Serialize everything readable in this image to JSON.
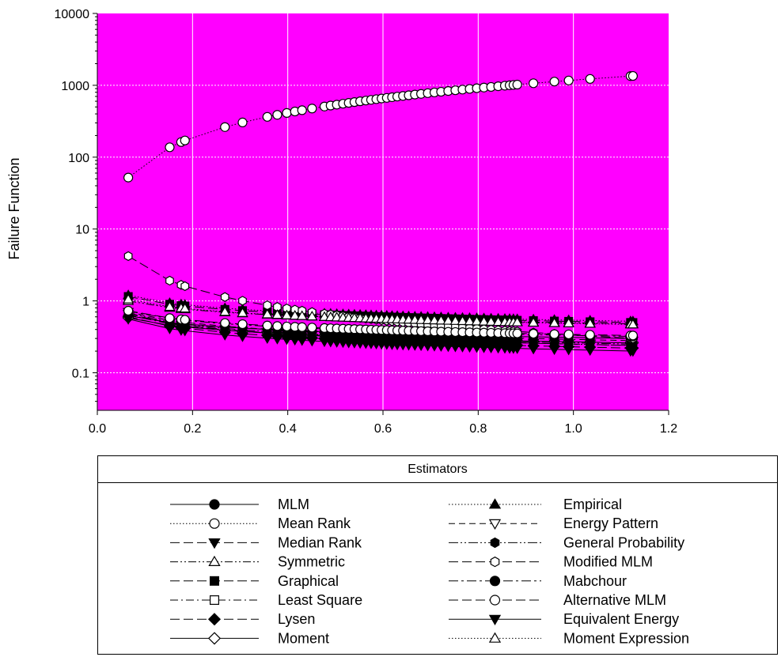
{
  "chart_data": {
    "type": "scatter",
    "title": "",
    "xlabel": "",
    "ylabel": "Failure Function",
    "xlim": [
      0.0,
      1.2
    ],
    "ylim": [
      0.03,
      10000
    ],
    "yscale": "log",
    "x_ticks": [
      "0.0",
      "0.2",
      "0.4",
      "0.6",
      "0.8",
      "1.0",
      "1.2"
    ],
    "y_ticks": [
      "0.1",
      "1",
      "10",
      "100",
      "1000",
      "10000"
    ],
    "grid": true,
    "plot_background": "#ff00ff",
    "legend_title": "Estimators",
    "legend_position": "bottom",
    "x": [
      0.065,
      0.152,
      0.176,
      0.184,
      0.268,
      0.305,
      0.357,
      0.378,
      0.398,
      0.415,
      0.43,
      0.451,
      0.477,
      0.49,
      0.503,
      0.516,
      0.528,
      0.54,
      0.552,
      0.564,
      0.575,
      0.586,
      0.597,
      0.608,
      0.619,
      0.63,
      0.642,
      0.654,
      0.667,
      0.68,
      0.694,
      0.708,
      0.722,
      0.737,
      0.752,
      0.767,
      0.782,
      0.797,
      0.812,
      0.827,
      0.842,
      0.856,
      0.866,
      0.874,
      0.882,
      0.916,
      0.96,
      0.99,
      1.035,
      1.12,
      1.125
    ],
    "series": [
      {
        "name": "MLM",
        "marker": "circle-filled",
        "dash": "solid",
        "start": 0.62,
        "end": 0.3
      },
      {
        "name": "Mean Rank",
        "marker": "circle-open",
        "dash": "dotted",
        "start": 52,
        "end": 1350
      },
      {
        "name": "Median Rank",
        "marker": "triangle-down-filled",
        "dash": "long-dash",
        "start": 0.66,
        "end": 0.24
      },
      {
        "name": "Symmetric",
        "marker": "triangle-up-open",
        "dash": "dash-dot-dot",
        "start": 1.0,
        "end": 0.48
      },
      {
        "name": "Graphical",
        "marker": "square-filled",
        "dash": "long-dash",
        "start": 1.15,
        "end": 0.5
      },
      {
        "name": "Least Square",
        "marker": "square-open",
        "dash": "dash-dot",
        "start": 0.64,
        "end": 0.24
      },
      {
        "name": "Lysen",
        "marker": "diamond-filled",
        "dash": "long-dash",
        "start": 0.6,
        "end": 0.22
      },
      {
        "name": "Moment",
        "marker": "diamond-open",
        "dash": "solid",
        "start": 0.58,
        "end": 0.26
      },
      {
        "name": "Empirical",
        "marker": "triangle-up-filled",
        "dash": "dotted",
        "start": 1.2,
        "end": 0.52
      },
      {
        "name": "Energy Pattern",
        "marker": "triangle-down-open",
        "dash": "medium-dash",
        "start": 0.7,
        "end": 0.28
      },
      {
        "name": "General Probability",
        "marker": "hexagon-filled",
        "dash": "long-dash-dot-dot",
        "start": 0.68,
        "end": 0.25
      },
      {
        "name": "Modified MLM",
        "marker": "hexagon-open",
        "dash": "long-dash",
        "start": 4.2,
        "end": 0.3
      },
      {
        "name": "Mabchour",
        "marker": "circle-filled",
        "dash": "long-dash-dot",
        "start": 0.72,
        "end": 0.32
      },
      {
        "name": "Alternative MLM",
        "marker": "circle-open",
        "dash": "long-dash",
        "start": 0.73,
        "end": 0.33
      },
      {
        "name": "Equivalent Energy",
        "marker": "triangle-down-filled",
        "dash": "solid",
        "start": 0.56,
        "end": 0.2
      },
      {
        "name": "Moment Expression",
        "marker": "triangle-up-open",
        "dash": "dotted",
        "start": 1.05,
        "end": 0.47
      }
    ]
  }
}
